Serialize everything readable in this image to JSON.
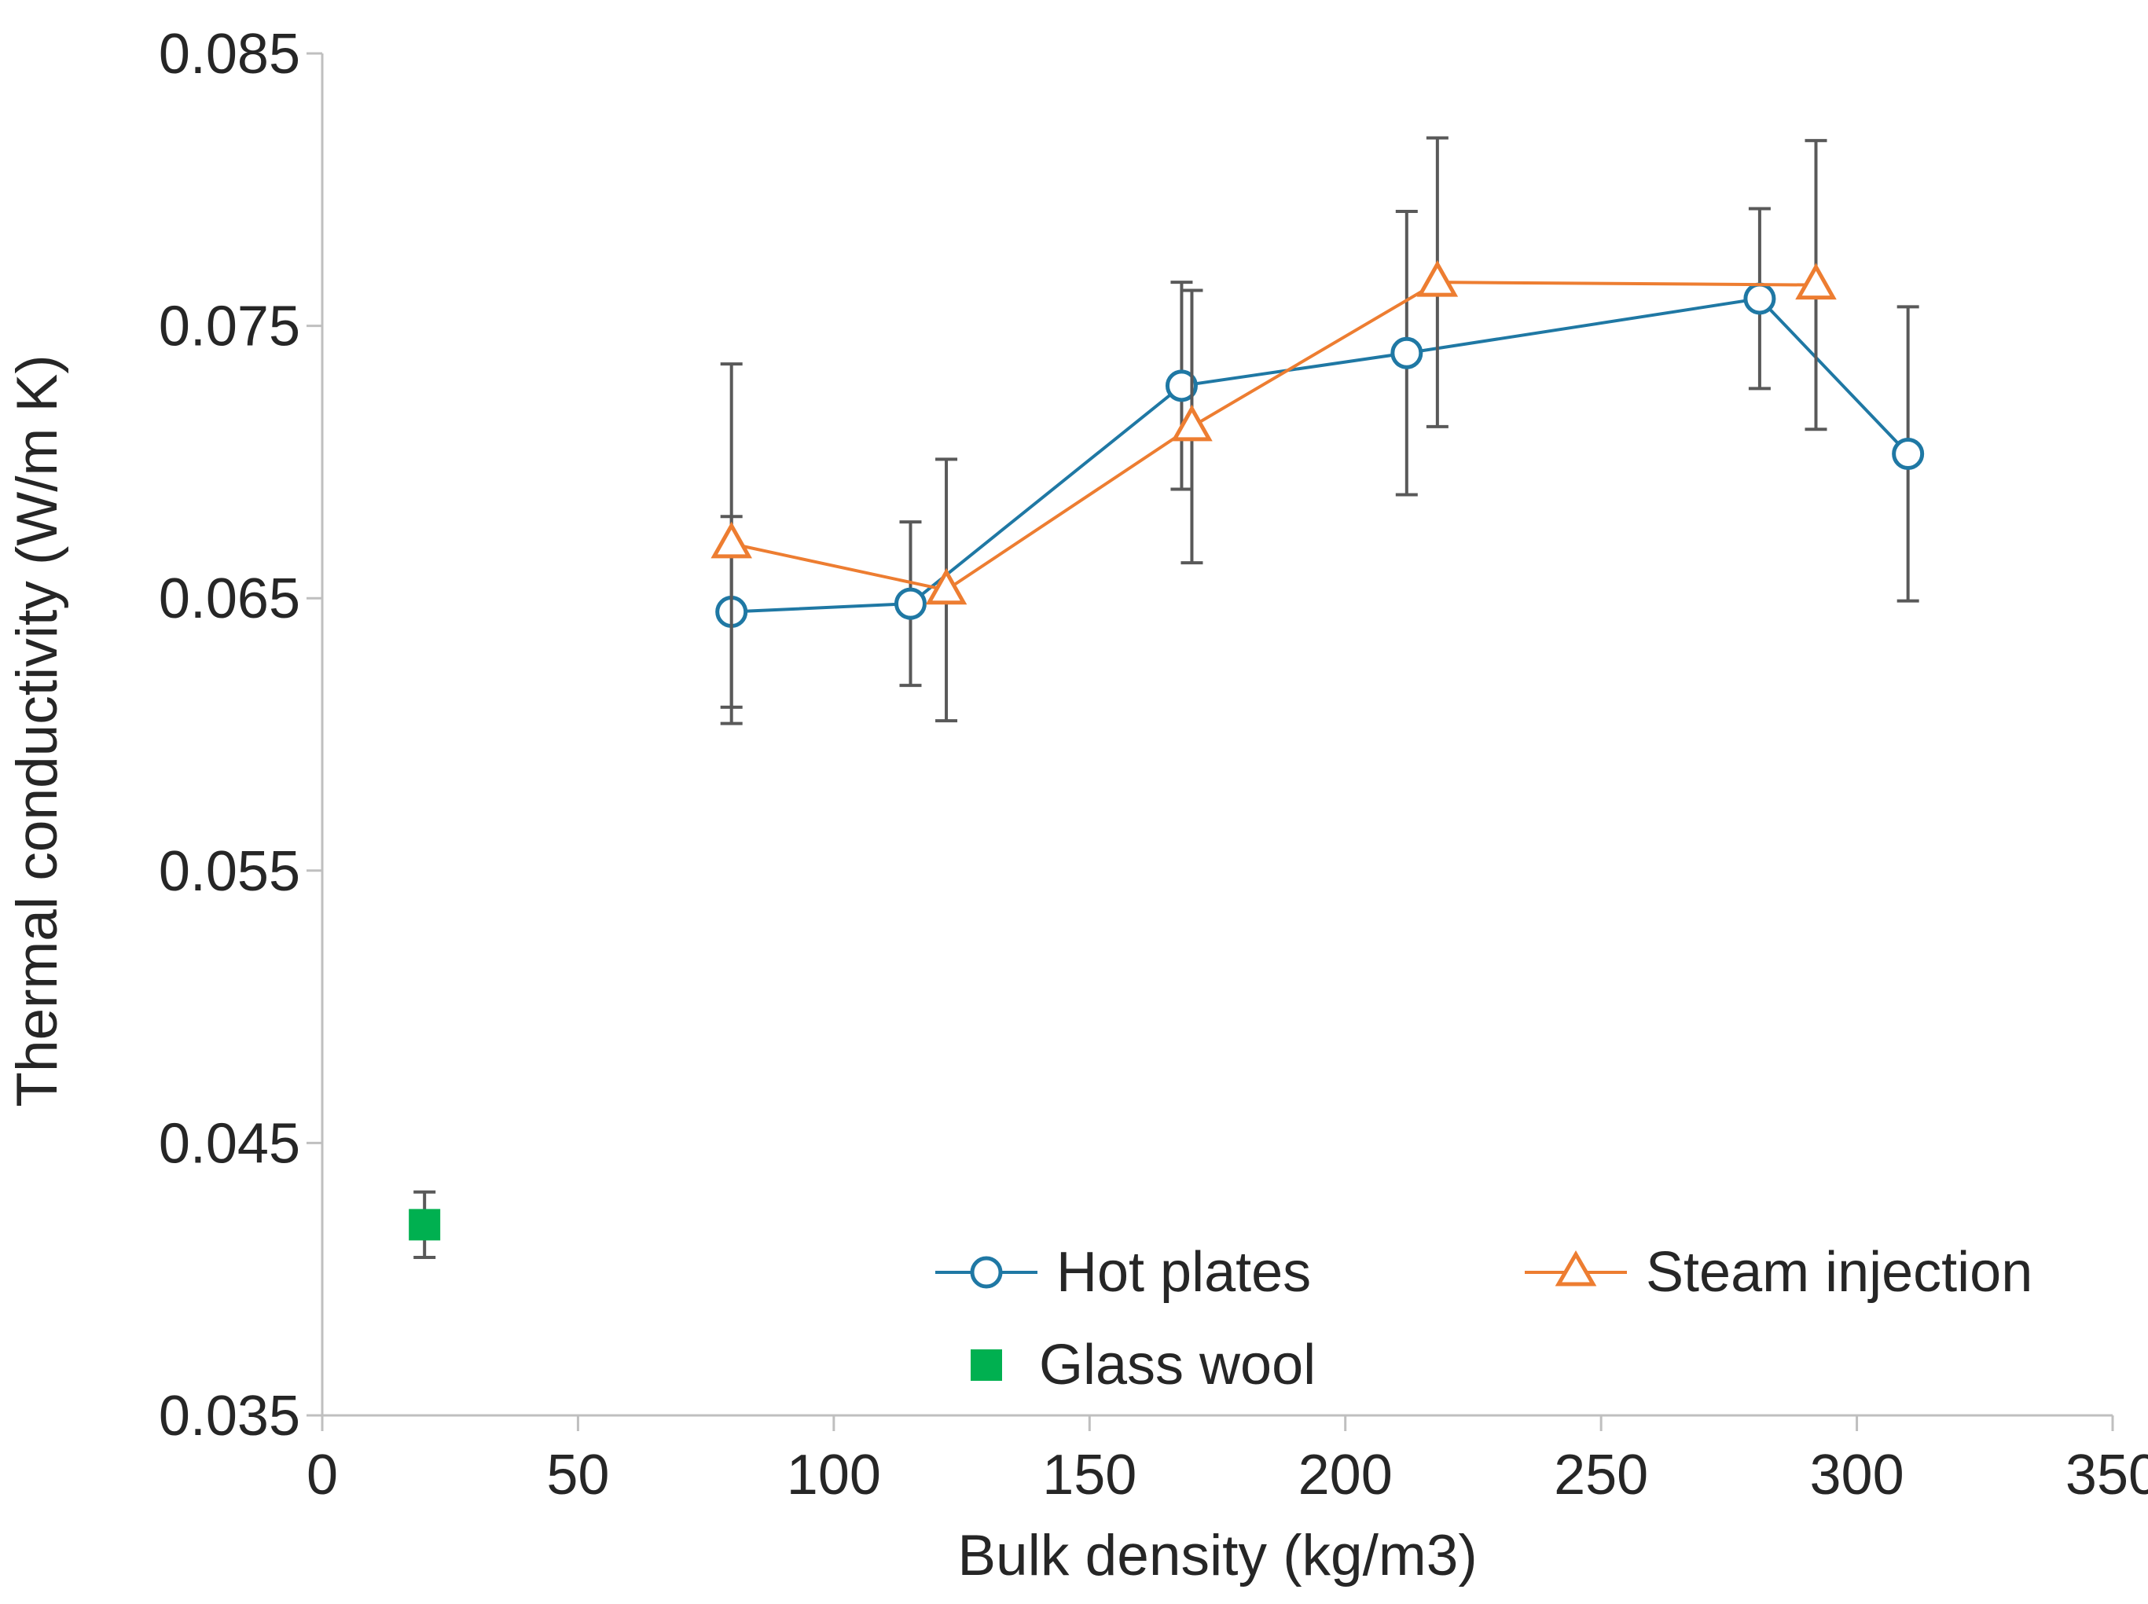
{
  "figure": {
    "background": "#ffffff",
    "axis_color": "#BFBFBF",
    "errorbar_color": "#595959",
    "text_color": "#262626"
  },
  "chart_data": {
    "type": "scatter",
    "title": "",
    "xlabel": "Bulk density (kg/m3)",
    "ylabel": "Thermal conductivity (W/m K)",
    "xlim": [
      0,
      350
    ],
    "ylim": [
      0.035,
      0.085
    ],
    "xticks": [
      0,
      50,
      100,
      150,
      200,
      250,
      300,
      350
    ],
    "xtick_labels": [
      "0",
      "50",
      "100",
      "150",
      "200",
      "250",
      "300",
      "350"
    ],
    "yticks": [
      0.035,
      0.045,
      0.055,
      0.065,
      0.075,
      0.085
    ],
    "ytick_labels": [
      "0.035",
      "0.045",
      "0.055",
      "0.065",
      "0.075",
      "0.085"
    ],
    "grid": false,
    "legend_position": "inside-bottom",
    "errorbars": true,
    "series": [
      {
        "name": "Hot plates",
        "marker": "circle",
        "color": "#1F78A4",
        "line": true,
        "points": [
          {
            "x": 80,
            "y": 0.0645,
            "err": 0.0035
          },
          {
            "x": 115,
            "y": 0.0648,
            "err": 0.003
          },
          {
            "x": 168,
            "y": 0.0728,
            "err": 0.0038
          },
          {
            "x": 212,
            "y": 0.074,
            "err": 0.0052
          },
          {
            "x": 281,
            "y": 0.076,
            "err": 0.0033
          },
          {
            "x": 310,
            "y": 0.0703,
            "err": 0.0054
          }
        ]
      },
      {
        "name": "Steam injection",
        "marker": "triangle",
        "color": "#ED7D31",
        "line": true,
        "points": [
          {
            "x": 80,
            "y": 0.067,
            "err": 0.0066
          },
          {
            "x": 122,
            "y": 0.0653,
            "err": 0.0048
          },
          {
            "x": 170,
            "y": 0.0713,
            "err": 0.005
          },
          {
            "x": 218,
            "y": 0.0766,
            "err": 0.0053
          },
          {
            "x": 292,
            "y": 0.0765,
            "err": 0.0053
          }
        ]
      },
      {
        "name": "Glass wool",
        "marker": "square",
        "color": "#00B050",
        "line": false,
        "points": [
          {
            "x": 20,
            "y": 0.042,
            "err": 0.0012
          }
        ]
      }
    ]
  }
}
